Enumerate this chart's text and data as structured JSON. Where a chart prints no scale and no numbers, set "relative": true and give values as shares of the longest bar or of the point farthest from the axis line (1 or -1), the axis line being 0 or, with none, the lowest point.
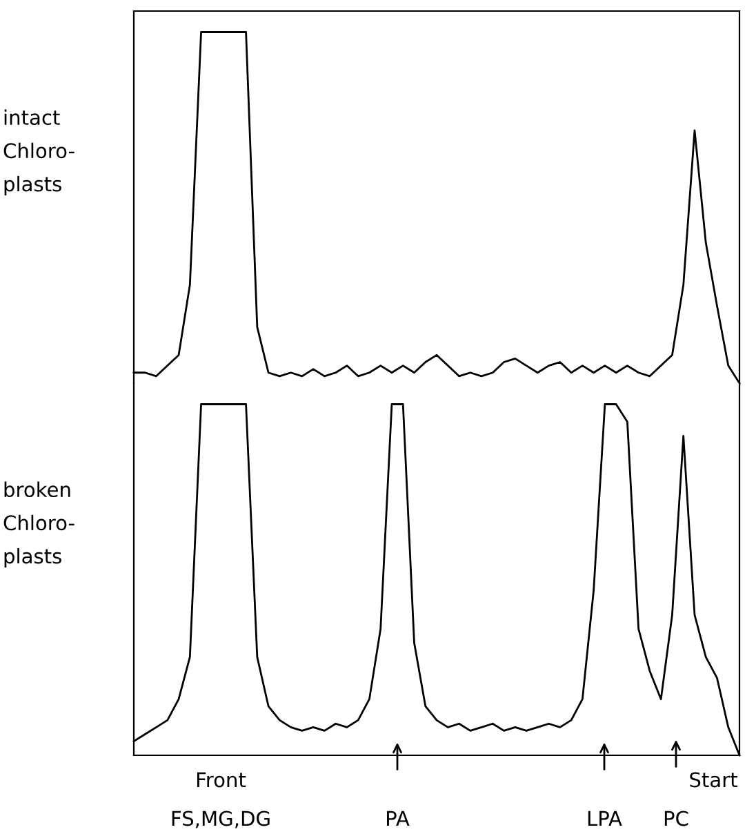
{
  "chart_data": [
    {
      "type": "line",
      "relative": true,
      "ylabel": "intact\nChloro-\nplasts",
      "categories": [
        null,
        null,
        null,
        null,
        null,
        null,
        null,
        null,
        null,
        null,
        null,
        null,
        null,
        null,
        null,
        null,
        null,
        null,
        null,
        null,
        null,
        null,
        null,
        null,
        null,
        null,
        null,
        null,
        null,
        null,
        null,
        null,
        null,
        null,
        null,
        null,
        null,
        null,
        null,
        null,
        null,
        null,
        null,
        null,
        null,
        null,
        null,
        null,
        null,
        null,
        null,
        null,
        null,
        null,
        null
      ],
      "series": [
        {
          "color": "#000000",
          "values": [
            0.03,
            0.03,
            0.02,
            0.05,
            0.08,
            0.28,
            1,
            1,
            1,
            1,
            1,
            0.16,
            0.03,
            0.02,
            0.03,
            0.02,
            0.04,
            0.02,
            0.03,
            0.05,
            0.02,
            0.03,
            0.05,
            0.03,
            0.05,
            0.03,
            0.06,
            0.08,
            0.05,
            0.02,
            0.03,
            0.02,
            0.03,
            0.06,
            0.07,
            0.05,
            0.03,
            0.05,
            0.06,
            0.03,
            0.05,
            0.03,
            0.05,
            0.03,
            0.05,
            0.03,
            0.02,
            0.05,
            0.08,
            0.28,
            0.72,
            0.4,
            0.22,
            0.05,
            0
          ]
        }
      ]
    },
    {
      "type": "line",
      "relative": true,
      "ylabel": "broken\nChloro-\nplasts",
      "categories": [
        null,
        null,
        null,
        null,
        null,
        null,
        null,
        null,
        null,
        null,
        null,
        null,
        null,
        null,
        null,
        null,
        null,
        null,
        null,
        null,
        null,
        null,
        null,
        null,
        null,
        null,
        null,
        null,
        null,
        null,
        null,
        null,
        null,
        null,
        null,
        null,
        null,
        null,
        null,
        null,
        null,
        null,
        null,
        null,
        null,
        null,
        null,
        null,
        null,
        null,
        null,
        null,
        null,
        null,
        null
      ],
      "series": [
        {
          "color": "#000000",
          "values": [
            0.04,
            0.06,
            0.08,
            0.1,
            0.16,
            0.28,
            1,
            1,
            1,
            1,
            1,
            0.28,
            0.14,
            0.1,
            0.08,
            0.07,
            0.08,
            0.07,
            0.09,
            0.08,
            0.1,
            0.16,
            0.36,
            1,
            1,
            0.32,
            0.14,
            0.1,
            0.08,
            0.09,
            0.07,
            0.08,
            0.09,
            0.07,
            0.08,
            0.07,
            0.08,
            0.09,
            0.08,
            0.1,
            0.16,
            0.47,
            1,
            1,
            0.95,
            0.36,
            0.24,
            0.16,
            0.4,
            0.91,
            0.4,
            0.28,
            0.22,
            0.08,
            0
          ]
        }
      ],
      "annotations": [
        "Front",
        "FS,MG,DG",
        "PA",
        "LPA",
        "PC",
        "Start"
      ]
    }
  ]
}
